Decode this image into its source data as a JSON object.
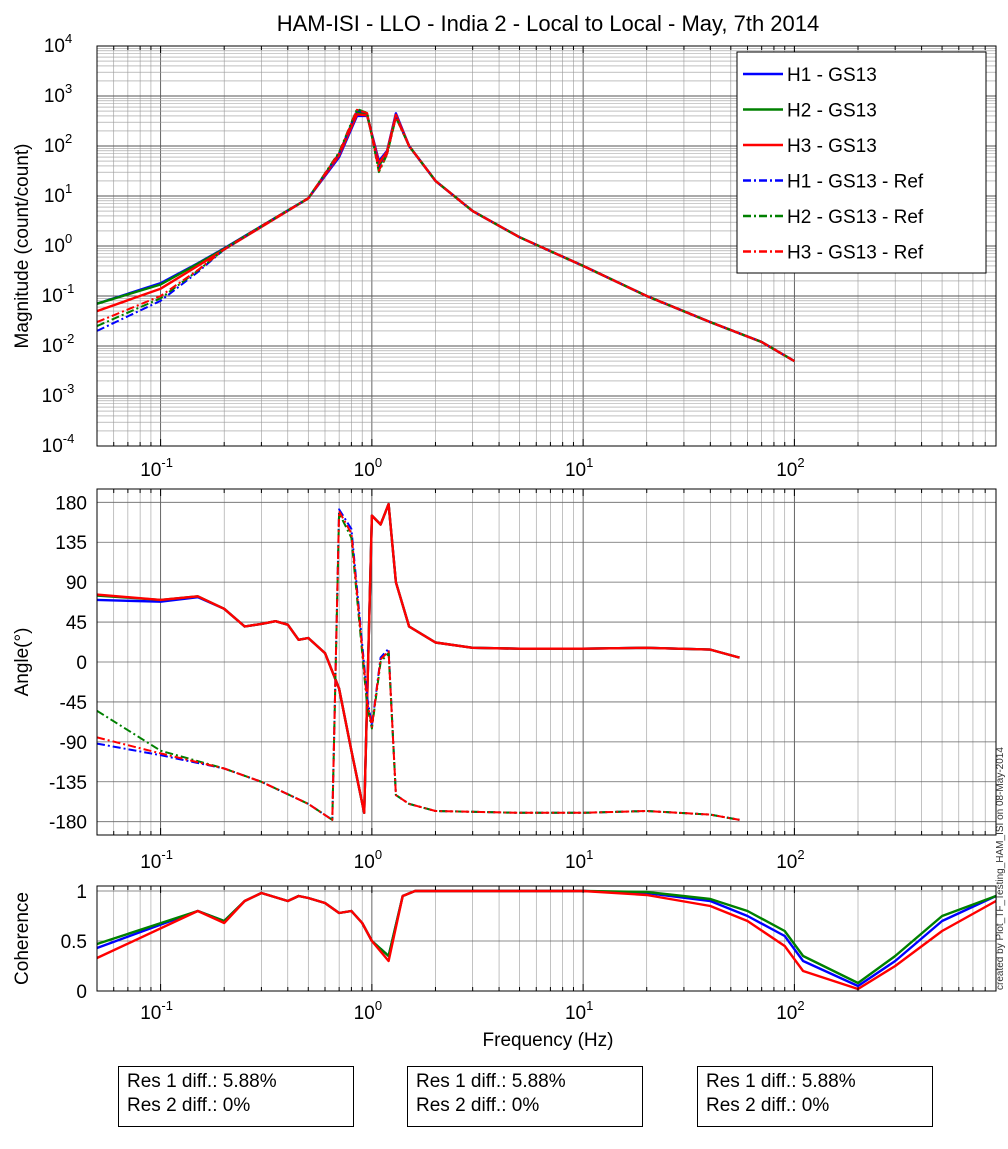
{
  "title": "HAM-ISI - LLO - India 2 - Local to Local - May, 7th 2014",
  "watermark": "created by Plot_TF_Testing_HAM_ISI on 08-May-2014",
  "colors": {
    "H1": "#0000ff",
    "H2": "#008000",
    "H3": "#ff0000"
  },
  "chart_data": [
    {
      "type": "line",
      "name": "magnitude",
      "ylabel": "Magnitude (count/count)",
      "xscale": "log",
      "yscale": "log",
      "xlim": [
        0.05,
        900
      ],
      "ylim": [
        0.0001,
        10000
      ],
      "grid": true,
      "legend_position": "top-right",
      "xticks": [
        {
          "base": "10",
          "exp": "-1"
        },
        {
          "base": "10",
          "exp": "0"
        },
        {
          "base": "10",
          "exp": "1"
        },
        {
          "base": "10",
          "exp": "2"
        }
      ],
      "yticks": [
        {
          "base": "10",
          "exp": "-4"
        },
        {
          "base": "10",
          "exp": "-3"
        },
        {
          "base": "10",
          "exp": "-2"
        },
        {
          "base": "10",
          "exp": "-1"
        },
        {
          "base": "10",
          "exp": "0"
        },
        {
          "base": "10",
          "exp": "1"
        },
        {
          "base": "10",
          "exp": "2"
        },
        {
          "base": "10",
          "exp": "3"
        },
        {
          "base": "10",
          "exp": "4"
        }
      ],
      "series": [
        {
          "name": "H1 - GS13",
          "color": "#0000ff",
          "dash": "solid",
          "x": [
            0.05,
            0.1,
            0.15,
            0.2,
            0.3,
            0.5,
            0.7,
            0.85,
            0.95,
            1.08,
            1.18,
            1.3,
            1.5,
            2,
            3,
            5,
            10,
            20,
            40,
            70,
            100
          ],
          "y": [
            0.07,
            0.18,
            0.45,
            0.9,
            2.5,
            9,
            60,
            400,
            400,
            50,
            80,
            450,
            100,
            20,
            5,
            1.5,
            0.4,
            0.1,
            0.03,
            0.012,
            0.005
          ]
        },
        {
          "name": "H2 - GS13",
          "color": "#008000",
          "dash": "solid",
          "x": [
            0.05,
            0.1,
            0.15,
            0.2,
            0.3,
            0.5,
            0.7,
            0.85,
            0.95,
            1.08,
            1.18,
            1.3,
            1.5,
            2,
            3,
            5,
            10,
            20,
            40,
            70,
            100
          ],
          "y": [
            0.07,
            0.17,
            0.44,
            0.88,
            2.5,
            9,
            70,
            480,
            420,
            40,
            75,
            400,
            100,
            20,
            5,
            1.5,
            0.4,
            0.1,
            0.03,
            0.012,
            0.005
          ]
        },
        {
          "name": "H3 - GS13",
          "color": "#ff0000",
          "dash": "solid",
          "x": [
            0.05,
            0.1,
            0.15,
            0.2,
            0.3,
            0.5,
            0.7,
            0.85,
            0.95,
            1.08,
            1.18,
            1.3,
            1.5,
            2,
            3,
            5,
            10,
            20,
            40,
            70,
            100
          ],
          "y": [
            0.05,
            0.14,
            0.4,
            0.85,
            2.4,
            9,
            65,
            430,
            410,
            45,
            78,
            420,
            100,
            20,
            5,
            1.5,
            0.4,
            0.1,
            0.03,
            0.012,
            0.005
          ]
        },
        {
          "name": "H1 - GS13 - Ref",
          "color": "#0000ff",
          "dash": "dashdot",
          "x": [
            0.05,
            0.1,
            0.15,
            0.2,
            0.3,
            0.5,
            0.7,
            0.85,
            0.95,
            1.08,
            1.18,
            1.3,
            1.5,
            2,
            3,
            5,
            10,
            20,
            40,
            70,
            100
          ],
          "y": [
            0.02,
            0.08,
            0.3,
            0.85,
            2.5,
            9,
            70,
            520,
            450,
            35,
            70,
            380,
            100,
            20,
            5,
            1.5,
            0.4,
            0.1,
            0.03,
            0.012,
            0.005
          ]
        },
        {
          "name": "H2 - GS13 - Ref",
          "color": "#008000",
          "dash": "dashdot",
          "x": [
            0.05,
            0.1,
            0.15,
            0.2,
            0.3,
            0.5,
            0.7,
            0.85,
            0.95,
            1.08,
            1.18,
            1.3,
            1.5,
            2,
            3,
            5,
            10,
            20,
            40,
            70,
            100
          ],
          "y": [
            0.025,
            0.09,
            0.32,
            0.86,
            2.5,
            9,
            75,
            550,
            460,
            30,
            68,
            370,
            100,
            20,
            5,
            1.5,
            0.4,
            0.1,
            0.03,
            0.012,
            0.005
          ]
        },
        {
          "name": "H3 - GS13 - Ref",
          "color": "#ff0000",
          "dash": "dashdot",
          "x": [
            0.05,
            0.1,
            0.15,
            0.2,
            0.3,
            0.5,
            0.7,
            0.85,
            0.95,
            1.08,
            1.18,
            1.3,
            1.5,
            2,
            3,
            5,
            10,
            20,
            40,
            70,
            100
          ],
          "y": [
            0.03,
            0.1,
            0.33,
            0.86,
            2.5,
            9,
            72,
            530,
            455,
            32,
            70,
            375,
            100,
            20,
            5,
            1.5,
            0.4,
            0.1,
            0.03,
            0.012,
            0.005
          ]
        }
      ]
    },
    {
      "type": "line",
      "name": "phase",
      "ylabel": "Angle(°)",
      "xscale": "log",
      "yscale": "linear",
      "xlim": [
        0.05,
        900
      ],
      "ylim": [
        -195,
        195
      ],
      "grid": true,
      "xticks": [
        {
          "base": "10",
          "exp": "-1"
        },
        {
          "base": "10",
          "exp": "0"
        },
        {
          "base": "10",
          "exp": "1"
        },
        {
          "base": "10",
          "exp": "2"
        }
      ],
      "yticks": [
        "180",
        "135",
        "90",
        "45",
        "0",
        "-45",
        "-90",
        "-135",
        "-180"
      ],
      "series": [
        {
          "name": "H1 - GS13",
          "color": "#0000ff",
          "dash": "solid",
          "x": [
            0.05,
            0.1,
            0.15,
            0.2,
            0.25,
            0.3,
            0.35,
            0.4,
            0.45,
            0.5,
            0.6,
            0.7,
            0.8,
            0.92,
            1.0,
            1.1,
            1.2,
            1.3,
            1.5,
            2,
            3,
            5,
            10,
            20,
            40,
            55
          ],
          "y": [
            70,
            68,
            73,
            60,
            40,
            43,
            46,
            42,
            25,
            27,
            10,
            -30,
            -100,
            -170,
            165,
            155,
            178,
            90,
            40,
            22,
            16,
            15,
            15,
            16,
            14,
            5
          ]
        },
        {
          "name": "H2 - GS13",
          "color": "#008000",
          "dash": "solid",
          "x": [
            0.05,
            0.1,
            0.15,
            0.2,
            0.25,
            0.3,
            0.35,
            0.4,
            0.45,
            0.5,
            0.6,
            0.7,
            0.8,
            0.92,
            1.0,
            1.1,
            1.2,
            1.3,
            1.5,
            2,
            3,
            5,
            10,
            20,
            40,
            55
          ],
          "y": [
            75,
            70,
            74,
            60,
            40,
            43,
            46,
            42,
            25,
            27,
            10,
            -30,
            -100,
            -170,
            165,
            155,
            178,
            90,
            40,
            22,
            16,
            15,
            15,
            16,
            14,
            5
          ]
        },
        {
          "name": "H3 - GS13",
          "color": "#ff0000",
          "dash": "solid",
          "x": [
            0.05,
            0.1,
            0.15,
            0.2,
            0.25,
            0.3,
            0.35,
            0.4,
            0.45,
            0.5,
            0.6,
            0.7,
            0.8,
            0.92,
            1.0,
            1.1,
            1.2,
            1.3,
            1.5,
            2,
            3,
            5,
            10,
            20,
            40,
            55
          ],
          "y": [
            76,
            70,
            74,
            60,
            40,
            43,
            46,
            42,
            25,
            27,
            10,
            -30,
            -100,
            -170,
            165,
            155,
            178,
            90,
            40,
            22,
            16,
            15,
            15,
            16,
            14,
            5
          ]
        },
        {
          "name": "H1 - GS13 - Ref",
          "color": "#0000ff",
          "dash": "dashdot",
          "x": [
            0.05,
            0.1,
            0.2,
            0.3,
            0.5,
            0.65,
            0.7,
            0.8,
            0.95,
            1.0,
            1.1,
            1.2,
            1.3,
            1.5,
            2,
            5,
            10,
            20,
            40,
            55
          ],
          "y": [
            -92,
            -105,
            -120,
            -135,
            -160,
            -178,
            172,
            150,
            -40,
            -72,
            5,
            15,
            -150,
            -160,
            -168,
            -170,
            -170,
            -168,
            -172,
            -178
          ]
        },
        {
          "name": "H2 - GS13 - Ref",
          "color": "#008000",
          "dash": "dashdot",
          "x": [
            0.05,
            0.1,
            0.2,
            0.3,
            0.5,
            0.65,
            0.7,
            0.8,
            0.95,
            1.0,
            1.1,
            1.2,
            1.3,
            1.5,
            2,
            5,
            10,
            20,
            40,
            55
          ],
          "y": [
            -55,
            -100,
            -120,
            -135,
            -160,
            -178,
            168,
            140,
            -50,
            -75,
            0,
            10,
            -150,
            -160,
            -168,
            -170,
            -170,
            -168,
            -172,
            -178
          ]
        },
        {
          "name": "H3 - GS13 - Ref",
          "color": "#ff0000",
          "dash": "dashdot",
          "x": [
            0.05,
            0.1,
            0.2,
            0.3,
            0.5,
            0.65,
            0.7,
            0.8,
            0.95,
            1.0,
            1.1,
            1.2,
            1.3,
            1.5,
            2,
            5,
            10,
            20,
            40,
            55
          ],
          "y": [
            -85,
            -103,
            -120,
            -135,
            -160,
            -178,
            170,
            145,
            -45,
            -73,
            3,
            12,
            -150,
            -160,
            -168,
            -170,
            -170,
            -168,
            -172,
            -178
          ]
        }
      ]
    },
    {
      "type": "line",
      "name": "coherence",
      "xlabel": "Frequency (Hz)",
      "ylabel": "Coherence",
      "xscale": "log",
      "yscale": "linear",
      "xlim": [
        0.05,
        900
      ],
      "ylim": [
        0,
        1.05
      ],
      "grid": true,
      "xticks": [
        {
          "base": "10",
          "exp": "-1"
        },
        {
          "base": "10",
          "exp": "0"
        },
        {
          "base": "10",
          "exp": "1"
        },
        {
          "base": "10",
          "exp": "2"
        }
      ],
      "yticks": [
        "1",
        "0.5",
        "0"
      ],
      "series": [
        {
          "name": "H1 - GS13",
          "color": "#0000ff",
          "dash": "solid",
          "x": [
            0.05,
            0.15,
            0.2,
            0.25,
            0.3,
            0.4,
            0.45,
            0.5,
            0.6,
            0.7,
            0.8,
            0.9,
            1.0,
            1.2,
            1.4,
            1.6,
            2,
            5,
            10,
            20,
            40,
            60,
            90,
            110,
            200,
            300,
            500,
            900
          ],
          "y": [
            0.43,
            0.8,
            0.7,
            0.9,
            0.98,
            0.9,
            0.95,
            0.93,
            0.88,
            0.78,
            0.8,
            0.68,
            0.5,
            0.35,
            0.95,
            1,
            1,
            1,
            1,
            0.98,
            0.9,
            0.75,
            0.55,
            0.3,
            0.05,
            0.3,
            0.7,
            0.95
          ]
        },
        {
          "name": "H2 - GS13",
          "color": "#008000",
          "dash": "solid",
          "x": [
            0.05,
            0.15,
            0.2,
            0.25,
            0.3,
            0.4,
            0.45,
            0.5,
            0.6,
            0.7,
            0.8,
            0.9,
            1.0,
            1.2,
            1.4,
            1.6,
            2,
            5,
            10,
            20,
            40,
            60,
            90,
            110,
            200,
            300,
            500,
            900
          ],
          "y": [
            0.47,
            0.8,
            0.7,
            0.9,
            0.98,
            0.9,
            0.95,
            0.93,
            0.88,
            0.78,
            0.8,
            0.68,
            0.5,
            0.35,
            0.95,
            1,
            1,
            1,
            1,
            0.99,
            0.92,
            0.8,
            0.6,
            0.35,
            0.08,
            0.35,
            0.75,
            0.95
          ]
        },
        {
          "name": "H3 - GS13",
          "color": "#ff0000",
          "dash": "solid",
          "x": [
            0.05,
            0.15,
            0.2,
            0.25,
            0.3,
            0.4,
            0.45,
            0.5,
            0.6,
            0.7,
            0.8,
            0.9,
            1.0,
            1.2,
            1.4,
            1.6,
            2,
            5,
            10,
            20,
            40,
            60,
            90,
            110,
            200,
            300,
            500,
            900
          ],
          "y": [
            0.33,
            0.8,
            0.68,
            0.9,
            0.98,
            0.9,
            0.95,
            0.93,
            0.88,
            0.78,
            0.8,
            0.68,
            0.5,
            0.3,
            0.95,
            1,
            1,
            1,
            1,
            0.96,
            0.85,
            0.7,
            0.45,
            0.2,
            0.02,
            0.25,
            0.6,
            0.9
          ]
        }
      ]
    }
  ],
  "boxes": [
    {
      "line1": "Res 1 diff.: 5.88%",
      "line2": "Res 2 diff.: 0%"
    },
    {
      "line1": "Res 1 diff.: 5.88%",
      "line2": "Res 2 diff.: 0%"
    },
    {
      "line1": "Res 1 diff.: 5.88%",
      "line2": "Res 2 diff.: 0%"
    }
  ]
}
